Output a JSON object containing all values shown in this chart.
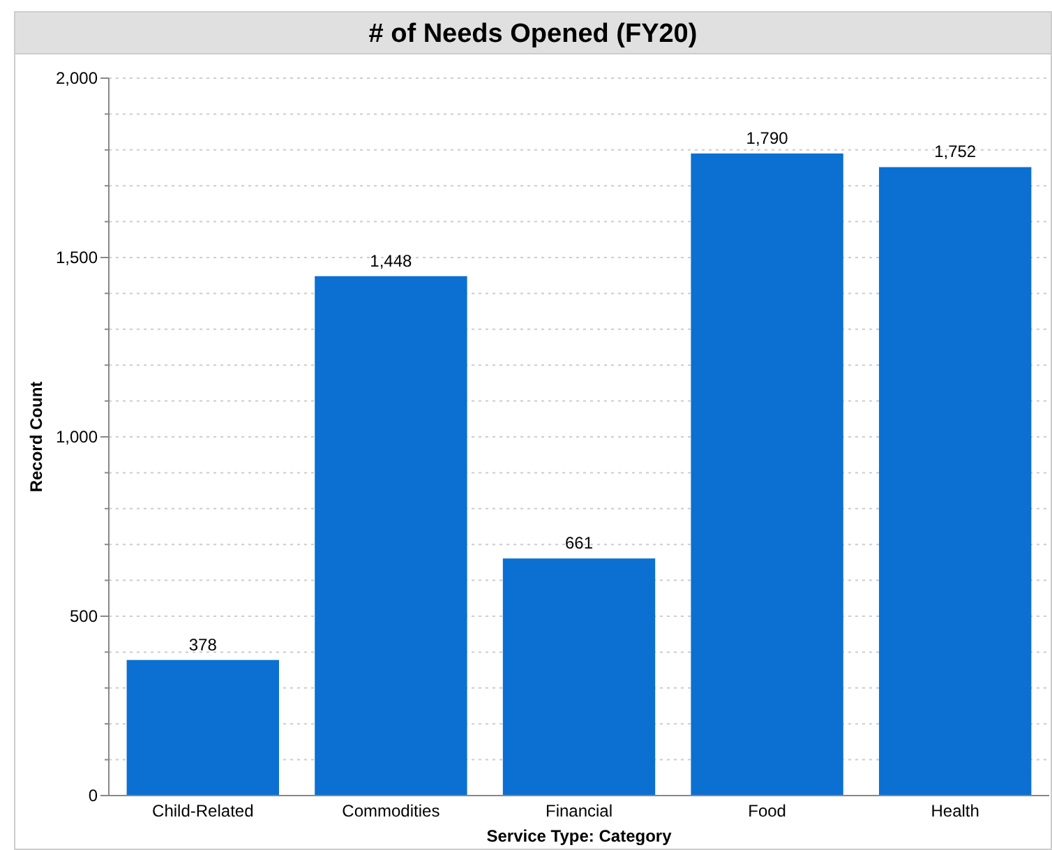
{
  "chart_data": {
    "type": "bar",
    "title": "# of Needs Opened (FY20)",
    "xlabel": "Service Type: Category",
    "ylabel": "Record Count",
    "categories": [
      "Child-Related",
      "Commodities",
      "Financial",
      "Food",
      "Health"
    ],
    "values": [
      378,
      1448,
      661,
      1790,
      1752
    ],
    "value_labels": [
      "378",
      "1,448",
      "661",
      "1,790",
      "1,752"
    ],
    "color": "#0b70d2",
    "grid": "y",
    "ylim": [
      0,
      2000
    ],
    "yticks": [
      {
        "value": 0,
        "label": "0"
      },
      {
        "value": 100,
        "label": null
      },
      {
        "value": 200,
        "label": null
      },
      {
        "value": 300,
        "label": null
      },
      {
        "value": 400,
        "label": null
      },
      {
        "value": 500,
        "label": "500"
      },
      {
        "value": 600,
        "label": null
      },
      {
        "value": 700,
        "label": null
      },
      {
        "value": 800,
        "label": null
      },
      {
        "value": 900,
        "label": null
      },
      {
        "value": 1000,
        "label": "1,000"
      },
      {
        "value": 1100,
        "label": null
      },
      {
        "value": 1200,
        "label": null
      },
      {
        "value": 1300,
        "label": null
      },
      {
        "value": 1400,
        "label": null
      },
      {
        "value": 1500,
        "label": "1,500"
      },
      {
        "value": 1600,
        "label": null
      },
      {
        "value": 1700,
        "label": null
      },
      {
        "value": 1800,
        "label": null
      },
      {
        "value": 1900,
        "label": null
      },
      {
        "value": 2000,
        "label": "2,000"
      }
    ]
  }
}
